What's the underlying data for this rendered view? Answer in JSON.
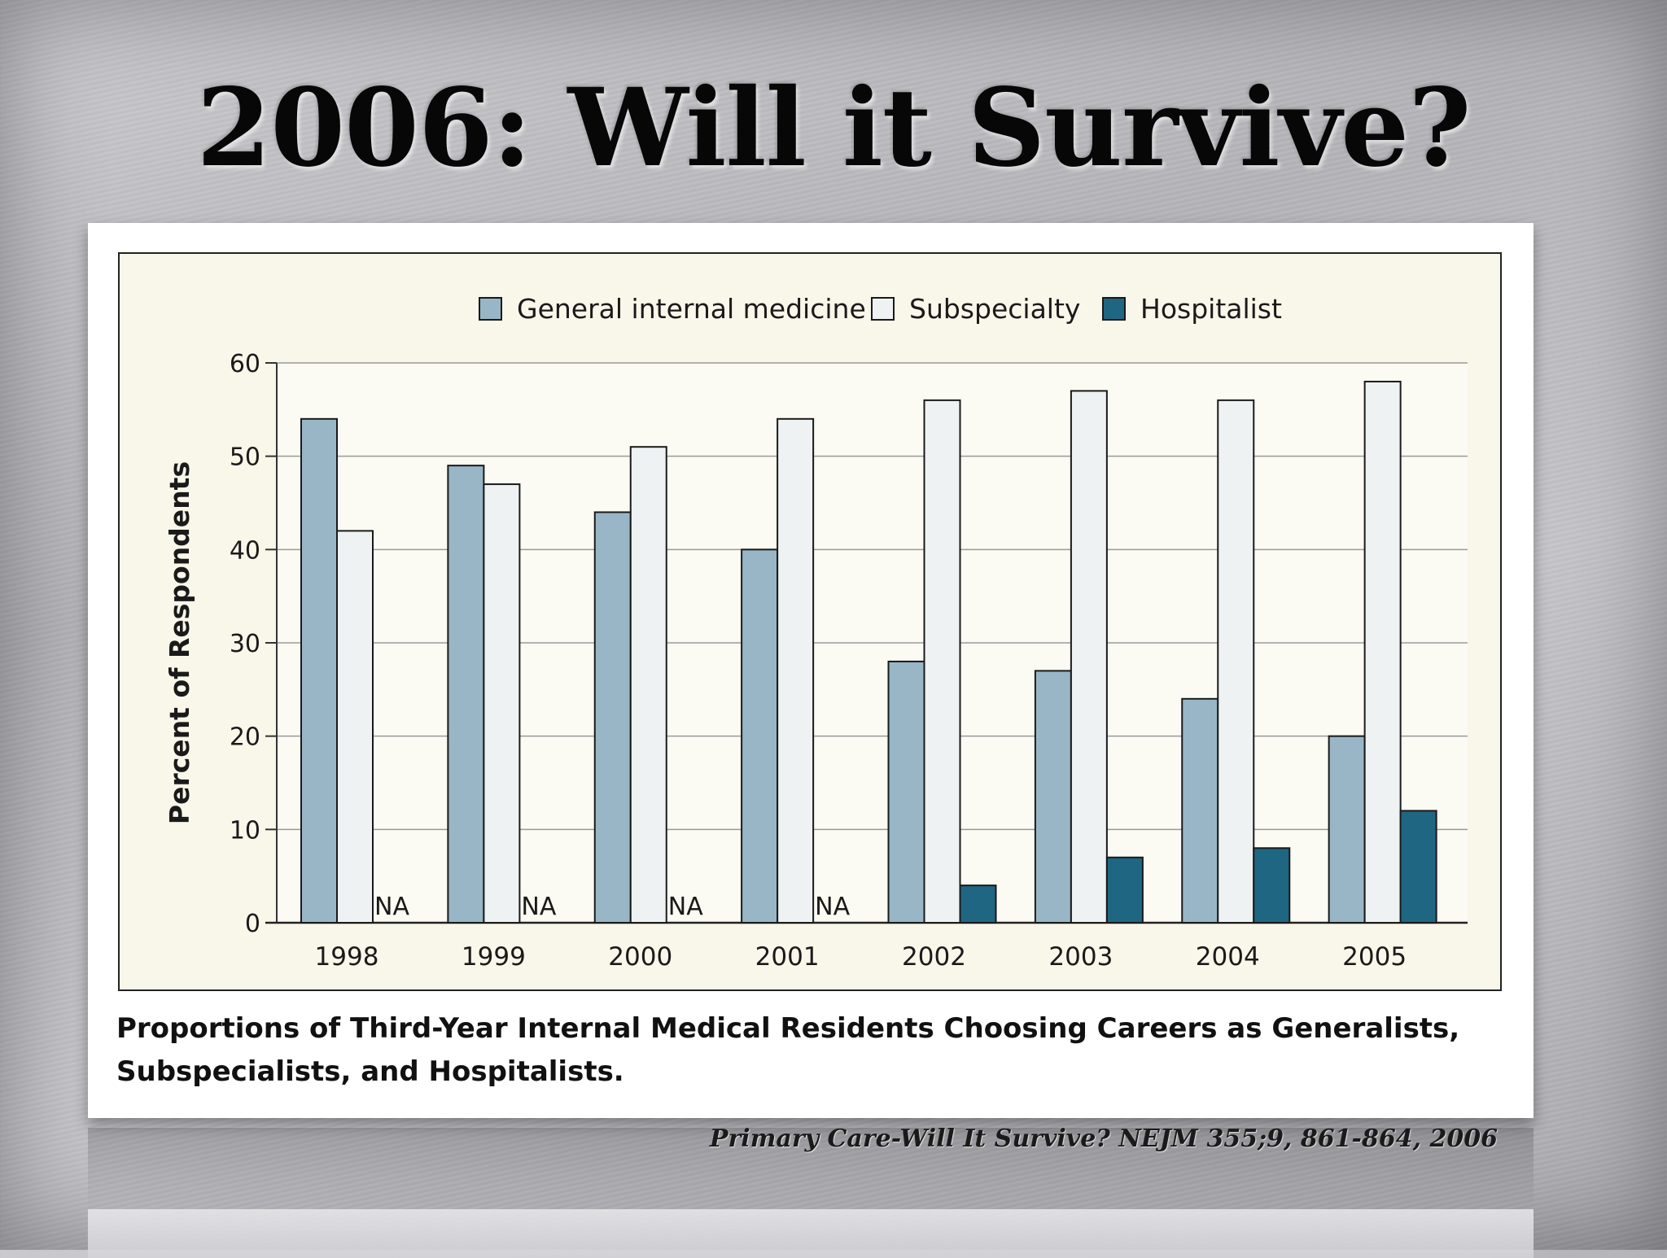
{
  "slide": {
    "title": "2006: Will it Survive?",
    "citation": "Primary Care-Will It Survive? NEJM 355;9, 861-864, 2006"
  },
  "caption": "Proportions of Third-Year Internal Medical Residents Choosing Careers as Generalists, Subspecialists, and Hospitalists.",
  "chart_data": {
    "type": "bar",
    "title": "",
    "xlabel": "",
    "ylabel": "Percent of Respondents",
    "ylim": [
      0,
      60
    ],
    "yticks": [
      0,
      10,
      20,
      30,
      40,
      50,
      60
    ],
    "grid": true,
    "legend_position": "top",
    "categories": [
      "1998",
      "1999",
      "2000",
      "2001",
      "2002",
      "2003",
      "2004",
      "2005"
    ],
    "series": [
      {
        "name": "General internal medicine",
        "color": "#98b6c6",
        "values": [
          54,
          49,
          44,
          40,
          28,
          27,
          24,
          20
        ]
      },
      {
        "name": "Subspecialty",
        "color": "#eef2f3",
        "values": [
          42,
          47,
          51,
          54,
          56,
          57,
          56,
          58
        ]
      },
      {
        "name": "Hospitalist",
        "color": "#1f6682",
        "values": [
          null,
          null,
          null,
          null,
          4,
          7,
          8,
          12
        ]
      }
    ],
    "missing_label": "NA"
  }
}
